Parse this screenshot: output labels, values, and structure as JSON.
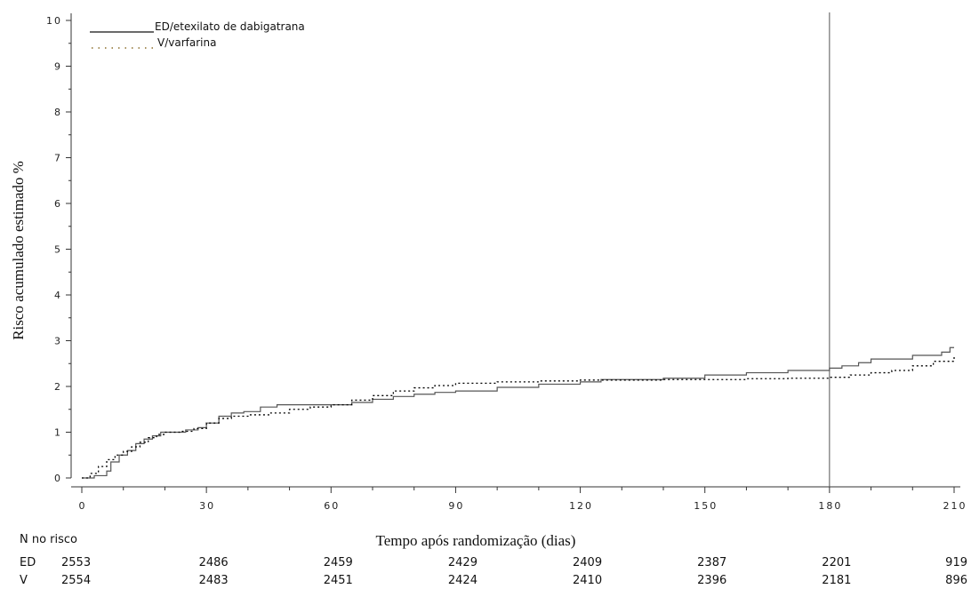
{
  "chart_data": {
    "type": "line",
    "xlabel": "Tempo após randomização (dias)",
    "ylabel": "Risco acumulado estimado %",
    "xlim": [
      0,
      210
    ],
    "ylim": [
      0,
      10
    ],
    "x_ticks": [
      0,
      30,
      60,
      90,
      120,
      150,
      180,
      210
    ],
    "x_tick_labels": [
      "0",
      "30",
      "60",
      "90",
      "120",
      "150",
      "180",
      "210"
    ],
    "y_ticks": [
      0,
      1,
      2,
      3,
      4,
      5,
      6,
      7,
      8,
      9,
      10
    ],
    "y_tick_labels": [
      "0",
      "1",
      "2",
      "3",
      "4",
      "5",
      "6",
      "7",
      "8",
      "9",
      "10"
    ],
    "vertical_reference_line_x": 180,
    "legend_placement": "top-left",
    "series": [
      {
        "name": "ED/etexilato de dabigatrana",
        "style": "solid",
        "color": "#555555",
        "x": [
          0,
          3,
          6,
          7,
          9,
          11,
          13,
          15,
          17,
          19,
          22,
          25,
          28,
          30,
          33,
          36,
          39,
          43,
          47,
          52,
          58,
          65,
          70,
          75,
          80,
          85,
          90,
          100,
          110,
          120,
          125,
          130,
          140,
          150,
          160,
          170,
          180,
          183,
          187,
          190,
          200,
          207,
          209,
          210
        ],
        "y": [
          0,
          0.05,
          0.15,
          0.35,
          0.5,
          0.6,
          0.75,
          0.85,
          0.92,
          1.0,
          1.0,
          1.05,
          1.1,
          1.2,
          1.35,
          1.42,
          1.45,
          1.55,
          1.6,
          1.6,
          1.6,
          1.65,
          1.72,
          1.78,
          1.83,
          1.87,
          1.9,
          1.98,
          2.05,
          2.1,
          2.15,
          2.15,
          2.18,
          2.25,
          2.3,
          2.35,
          2.4,
          2.45,
          2.52,
          2.6,
          2.68,
          2.75,
          2.85,
          2.85
        ]
      },
      {
        "name": "V/varfarina",
        "style": "dotted",
        "color": "#000000",
        "x": [
          0,
          2,
          4,
          6,
          8,
          10,
          12,
          14,
          16,
          18,
          20,
          24,
          27,
          30,
          33,
          36,
          40,
          45,
          50,
          55,
          60,
          65,
          70,
          75,
          80,
          85,
          90,
          100,
          110,
          120,
          130,
          140,
          150,
          160,
          170,
          180,
          185,
          190,
          195,
          200,
          205,
          210
        ],
        "y": [
          0,
          0.1,
          0.25,
          0.4,
          0.5,
          0.58,
          0.68,
          0.78,
          0.88,
          0.95,
          1.0,
          1.02,
          1.08,
          1.2,
          1.3,
          1.35,
          1.38,
          1.42,
          1.5,
          1.55,
          1.6,
          1.7,
          1.8,
          1.9,
          1.97,
          2.02,
          2.07,
          2.1,
          2.12,
          2.14,
          2.14,
          2.15,
          2.15,
          2.17,
          2.18,
          2.2,
          2.25,
          2.3,
          2.35,
          2.45,
          2.55,
          2.65
        ]
      }
    ],
    "at_risk": {
      "header": "N no risco",
      "rows": [
        {
          "label": "ED",
          "values": [
            "2553",
            "2486",
            "2459",
            "2429",
            "2409",
            "2387",
            "2201",
            "919"
          ]
        },
        {
          "label": "V",
          "values": [
            "2554",
            "2483",
            "2451",
            "2424",
            "2410",
            "2396",
            "2181",
            "896"
          ]
        }
      ]
    }
  }
}
